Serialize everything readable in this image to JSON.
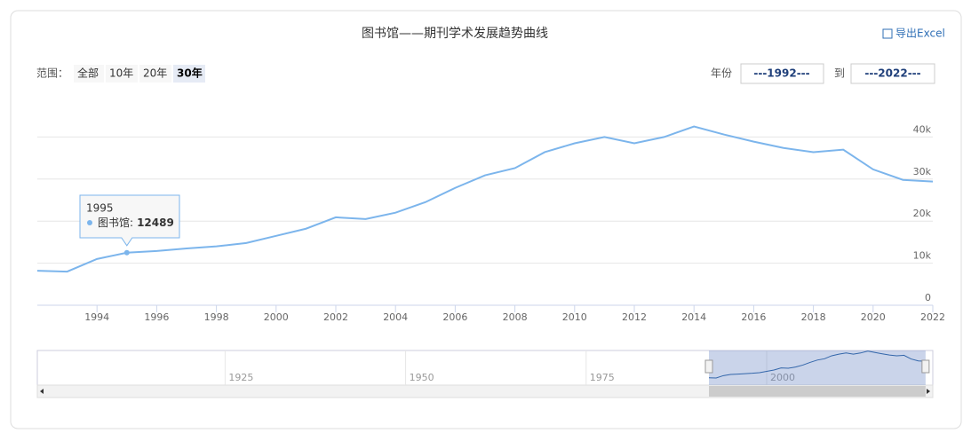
{
  "chart_data": {
    "type": "line",
    "title": "图书馆——期刊学术发展趋势曲线",
    "export_label": "导出Excel",
    "range_label": "范围：",
    "range_buttons": [
      "全部",
      "10年",
      "20年",
      "30年"
    ],
    "range_selected": 3,
    "year_label": "年份",
    "from": "---1992---",
    "to_label": "到",
    "to": "---2022---",
    "x": [
      1992,
      1993,
      1994,
      1995,
      1996,
      1997,
      1998,
      1999,
      2000,
      2001,
      2002,
      2003,
      2004,
      2005,
      2006,
      2007,
      2008,
      2009,
      2010,
      2011,
      2012,
      2013,
      2014,
      2015,
      2016,
      2017,
      2018,
      2019,
      2020,
      2021,
      2022
    ],
    "series": [
      {
        "name": "图书馆",
        "color": "#7cb5ec",
        "values": [
          8200,
          8000,
          11000,
          12489,
          12900,
          13500,
          14000,
          14800,
          16500,
          18200,
          20900,
          20500,
          22000,
          24500,
          27900,
          30900,
          32600,
          36400,
          38500,
          40000,
          38500,
          40000,
          42500,
          40600,
          38900,
          37400,
          36400,
          37000,
          32300,
          29800,
          29400
        ]
      }
    ],
    "xlim": [
      1992,
      2022
    ],
    "xticks": [
      1994,
      1996,
      1998,
      2000,
      2002,
      2004,
      2006,
      2008,
      2010,
      2012,
      2014,
      2016,
      2018,
      2020,
      2022
    ],
    "ylim": [
      0,
      50000
    ],
    "yticks": [
      {
        "value": 0,
        "label": "0"
      },
      {
        "value": 10000,
        "label": "10k"
      },
      {
        "value": 20000,
        "label": "20k"
      },
      {
        "value": 30000,
        "label": "30k"
      },
      {
        "value": 40000,
        "label": "40k"
      }
    ],
    "grid": true,
    "tooltip": {
      "index": 3,
      "separator": ":"
    },
    "navigator": {
      "xlim": [
        1899,
        2023
      ],
      "xticks": [
        1925,
        1950,
        1975,
        2000
      ]
    }
  }
}
